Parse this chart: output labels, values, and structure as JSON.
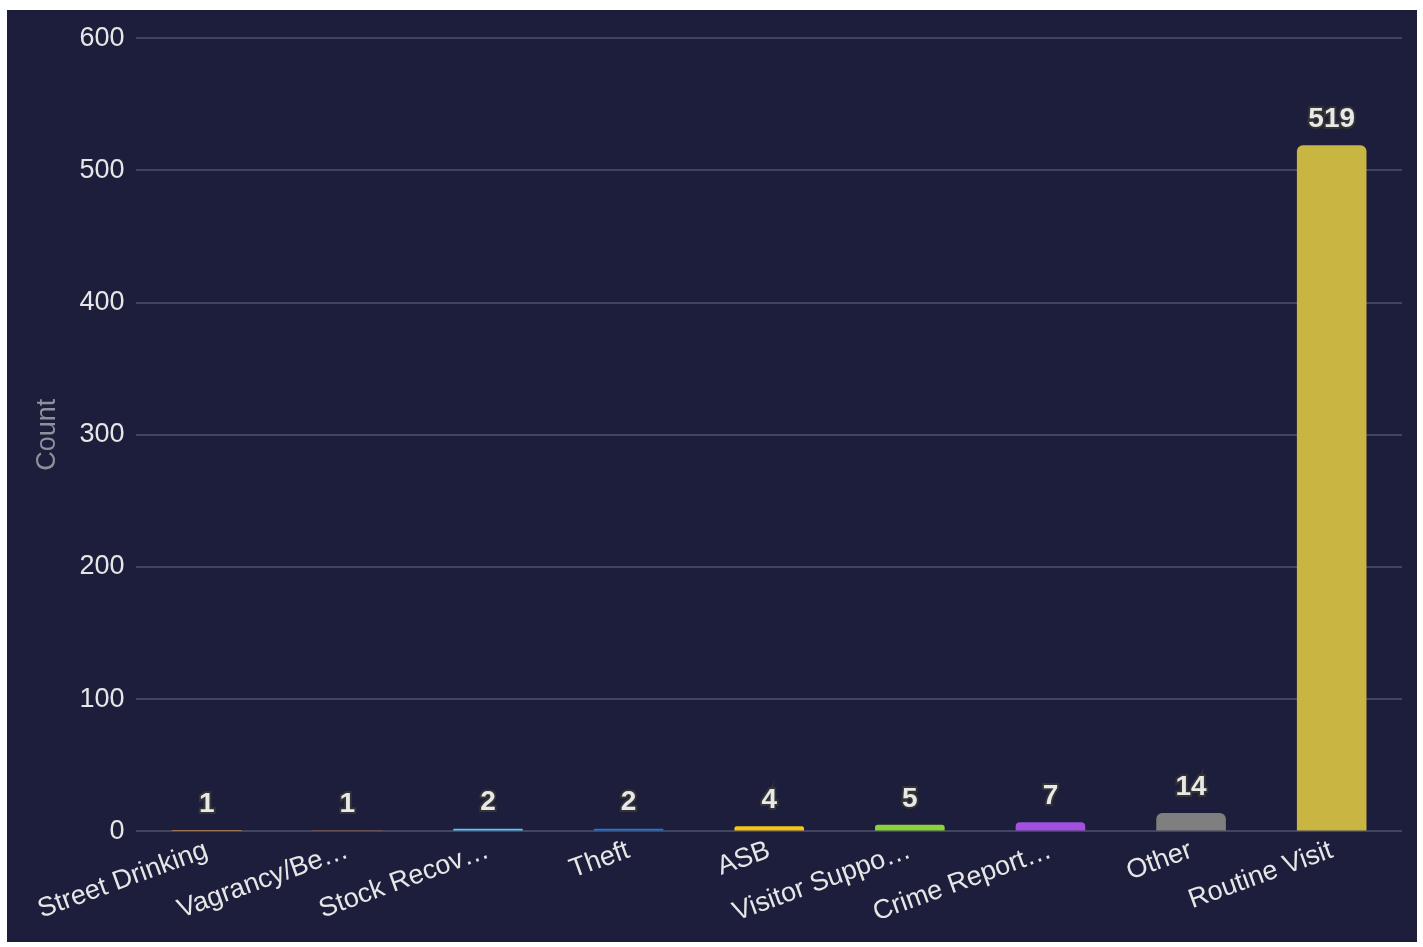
{
  "chart_data": {
    "type": "bar",
    "ylabel": "Count",
    "categories": [
      "Street Drinking",
      "Vagrancy/Be…",
      "Stock Recov…",
      "Theft",
      "ASB",
      "Visitor Suppo…",
      "Crime Report…",
      "Other",
      "Routine Visit"
    ],
    "values": [
      1,
      1,
      2,
      2,
      4,
      5,
      7,
      14,
      519
    ],
    "colors": [
      "#f4a24a",
      "#8d5b48",
      "#5ec4f5",
      "#2176d9",
      "#f5c518",
      "#8bd23a",
      "#a150e0",
      "#7f7f7f",
      "#c9b541"
    ],
    "ylim": [
      0,
      600
    ],
    "yticks": [
      0,
      100,
      200,
      300,
      400,
      500,
      600
    ],
    "grid": "y",
    "data_labels": true
  }
}
